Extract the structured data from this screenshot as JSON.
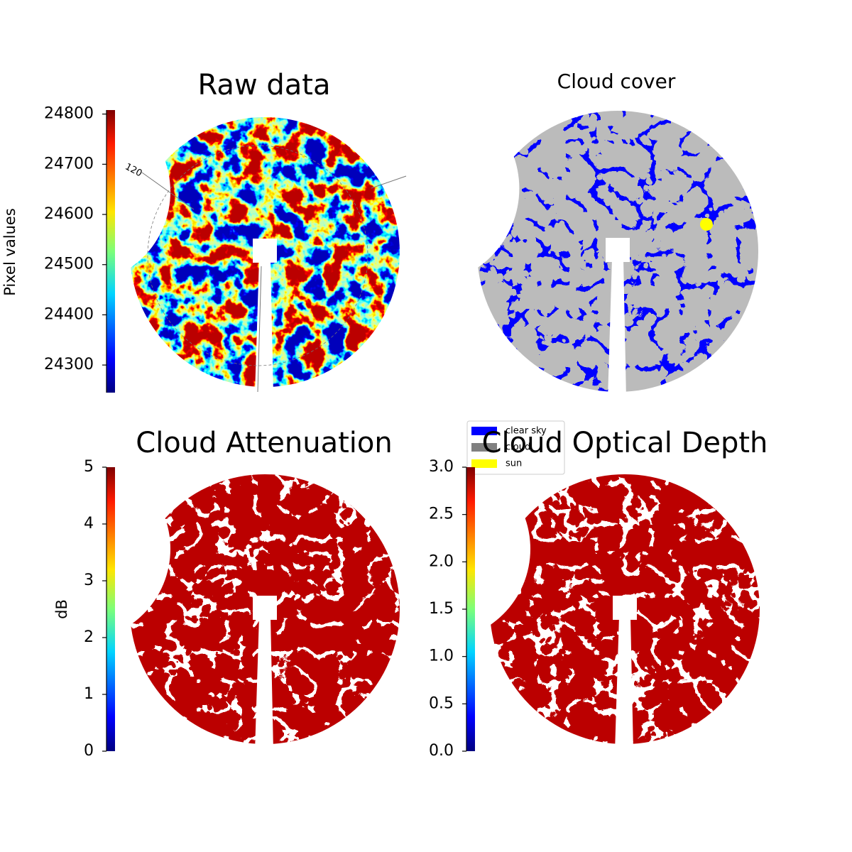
{
  "chart_data": [
    {
      "type": "image",
      "title": "Raw data",
      "ylabel": "Pixel values",
      "colormap": "jet",
      "ylim": [
        24245,
        24808
      ],
      "yticks": [
        24300,
        24400,
        24500,
        24600,
        24700,
        24800
      ],
      "annotation": "120"
    },
    {
      "type": "image",
      "title": "Cloud cover",
      "series": [
        {
          "name": "clear sky",
          "color": "#0000ff"
        },
        {
          "name": "cloud",
          "color": "#808080"
        },
        {
          "name": "sun",
          "color": "#ffff00"
        }
      ]
    },
    {
      "type": "image",
      "title": "Cloud Attenuation",
      "ylabel": "dB",
      "colormap": "jet",
      "ylim": [
        0,
        5
      ],
      "yticks": [
        0,
        1,
        2,
        3,
        4,
        5
      ]
    },
    {
      "type": "image",
      "title": "Cloud Optical Depth",
      "colormap": "jet",
      "ylim": [
        0,
        3
      ],
      "yticks": [
        {
          "value": 0,
          "label": "0.0"
        },
        0.5,
        {
          "value": 1,
          "label": "1.0"
        },
        1.5,
        {
          "value": 2,
          "label": "2.0"
        },
        2.5,
        {
          "value": 3,
          "label": "3.0"
        }
      ]
    }
  ]
}
